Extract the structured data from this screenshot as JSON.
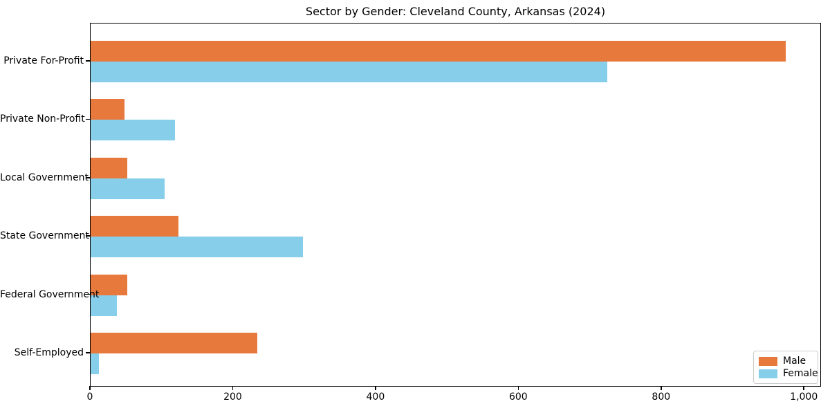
{
  "chart_data": {
    "type": "bar",
    "orientation": "horizontal",
    "title": "Sector by Gender: Cleveland County, Arkansas (2024)",
    "categories": [
      "Private For-Profit",
      "Private Non-Profit",
      "Local Government",
      "State Government",
      "Federal Government",
      "Self-Employed"
    ],
    "series": [
      {
        "name": "Male",
        "color": "#e8793d",
        "values": [
          975,
          48,
          51,
          123,
          51,
          234
        ]
      },
      {
        "name": "Female",
        "color": "#87ceeb",
        "values": [
          725,
          118,
          104,
          298,
          37,
          12
        ]
      }
    ],
    "xlabel": "",
    "ylabel": "",
    "xlim": [
      0,
      1024
    ],
    "xticks": [
      0,
      200,
      400,
      600,
      800,
      1000
    ],
    "xtick_labels": [
      "0",
      "200",
      "400",
      "600",
      "800",
      "1,000"
    ],
    "grid": false,
    "legend_position": "lower right"
  }
}
